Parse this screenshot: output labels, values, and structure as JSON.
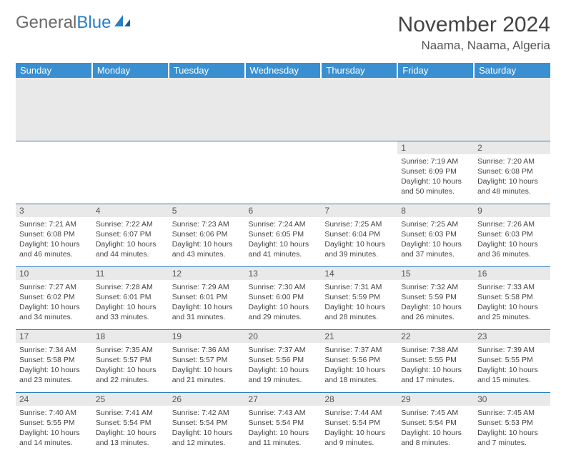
{
  "logo": {
    "text_gray": "General",
    "text_blue": "Blue"
  },
  "title": "November 2024",
  "location": "Naama, Naama, Algeria",
  "colors": {
    "header_bg": "#3a8fd0",
    "header_text": "#ffffff",
    "daynum_bg": "#e9e9e9",
    "border": "#2a7ec4",
    "logo_gray": "#6a6a6a",
    "logo_blue": "#2a7ec4"
  },
  "weekdays": [
    "Sunday",
    "Monday",
    "Tuesday",
    "Wednesday",
    "Thursday",
    "Friday",
    "Saturday"
  ],
  "weeks": [
    [
      {
        "empty": true
      },
      {
        "empty": true
      },
      {
        "empty": true
      },
      {
        "empty": true
      },
      {
        "empty": true
      },
      {
        "num": "1",
        "sunrise": "7:19 AM",
        "sunset": "6:09 PM",
        "daylight": "10 hours and 50 minutes."
      },
      {
        "num": "2",
        "sunrise": "7:20 AM",
        "sunset": "6:08 PM",
        "daylight": "10 hours and 48 minutes."
      }
    ],
    [
      {
        "num": "3",
        "sunrise": "7:21 AM",
        "sunset": "6:08 PM",
        "daylight": "10 hours and 46 minutes."
      },
      {
        "num": "4",
        "sunrise": "7:22 AM",
        "sunset": "6:07 PM",
        "daylight": "10 hours and 44 minutes."
      },
      {
        "num": "5",
        "sunrise": "7:23 AM",
        "sunset": "6:06 PM",
        "daylight": "10 hours and 43 minutes."
      },
      {
        "num": "6",
        "sunrise": "7:24 AM",
        "sunset": "6:05 PM",
        "daylight": "10 hours and 41 minutes."
      },
      {
        "num": "7",
        "sunrise": "7:25 AM",
        "sunset": "6:04 PM",
        "daylight": "10 hours and 39 minutes."
      },
      {
        "num": "8",
        "sunrise": "7:25 AM",
        "sunset": "6:03 PM",
        "daylight": "10 hours and 37 minutes."
      },
      {
        "num": "9",
        "sunrise": "7:26 AM",
        "sunset": "6:03 PM",
        "daylight": "10 hours and 36 minutes."
      }
    ],
    [
      {
        "num": "10",
        "sunrise": "7:27 AM",
        "sunset": "6:02 PM",
        "daylight": "10 hours and 34 minutes."
      },
      {
        "num": "11",
        "sunrise": "7:28 AM",
        "sunset": "6:01 PM",
        "daylight": "10 hours and 33 minutes."
      },
      {
        "num": "12",
        "sunrise": "7:29 AM",
        "sunset": "6:01 PM",
        "daylight": "10 hours and 31 minutes."
      },
      {
        "num": "13",
        "sunrise": "7:30 AM",
        "sunset": "6:00 PM",
        "daylight": "10 hours and 29 minutes."
      },
      {
        "num": "14",
        "sunrise": "7:31 AM",
        "sunset": "5:59 PM",
        "daylight": "10 hours and 28 minutes."
      },
      {
        "num": "15",
        "sunrise": "7:32 AM",
        "sunset": "5:59 PM",
        "daylight": "10 hours and 26 minutes."
      },
      {
        "num": "16",
        "sunrise": "7:33 AM",
        "sunset": "5:58 PM",
        "daylight": "10 hours and 25 minutes."
      }
    ],
    [
      {
        "num": "17",
        "sunrise": "7:34 AM",
        "sunset": "5:58 PM",
        "daylight": "10 hours and 23 minutes."
      },
      {
        "num": "18",
        "sunrise": "7:35 AM",
        "sunset": "5:57 PM",
        "daylight": "10 hours and 22 minutes."
      },
      {
        "num": "19",
        "sunrise": "7:36 AM",
        "sunset": "5:57 PM",
        "daylight": "10 hours and 21 minutes."
      },
      {
        "num": "20",
        "sunrise": "7:37 AM",
        "sunset": "5:56 PM",
        "daylight": "10 hours and 19 minutes."
      },
      {
        "num": "21",
        "sunrise": "7:37 AM",
        "sunset": "5:56 PM",
        "daylight": "10 hours and 18 minutes."
      },
      {
        "num": "22",
        "sunrise": "7:38 AM",
        "sunset": "5:55 PM",
        "daylight": "10 hours and 17 minutes."
      },
      {
        "num": "23",
        "sunrise": "7:39 AM",
        "sunset": "5:55 PM",
        "daylight": "10 hours and 15 minutes."
      }
    ],
    [
      {
        "num": "24",
        "sunrise": "7:40 AM",
        "sunset": "5:55 PM",
        "daylight": "10 hours and 14 minutes."
      },
      {
        "num": "25",
        "sunrise": "7:41 AM",
        "sunset": "5:54 PM",
        "daylight": "10 hours and 13 minutes."
      },
      {
        "num": "26",
        "sunrise": "7:42 AM",
        "sunset": "5:54 PM",
        "daylight": "10 hours and 12 minutes."
      },
      {
        "num": "27",
        "sunrise": "7:43 AM",
        "sunset": "5:54 PM",
        "daylight": "10 hours and 11 minutes."
      },
      {
        "num": "28",
        "sunrise": "7:44 AM",
        "sunset": "5:54 PM",
        "daylight": "10 hours and 9 minutes."
      },
      {
        "num": "29",
        "sunrise": "7:45 AM",
        "sunset": "5:54 PM",
        "daylight": "10 hours and 8 minutes."
      },
      {
        "num": "30",
        "sunrise": "7:45 AM",
        "sunset": "5:53 PM",
        "daylight": "10 hours and 7 minutes."
      }
    ]
  ],
  "labels": {
    "sunrise": "Sunrise:",
    "sunset": "Sunset:",
    "daylight": "Daylight:"
  }
}
